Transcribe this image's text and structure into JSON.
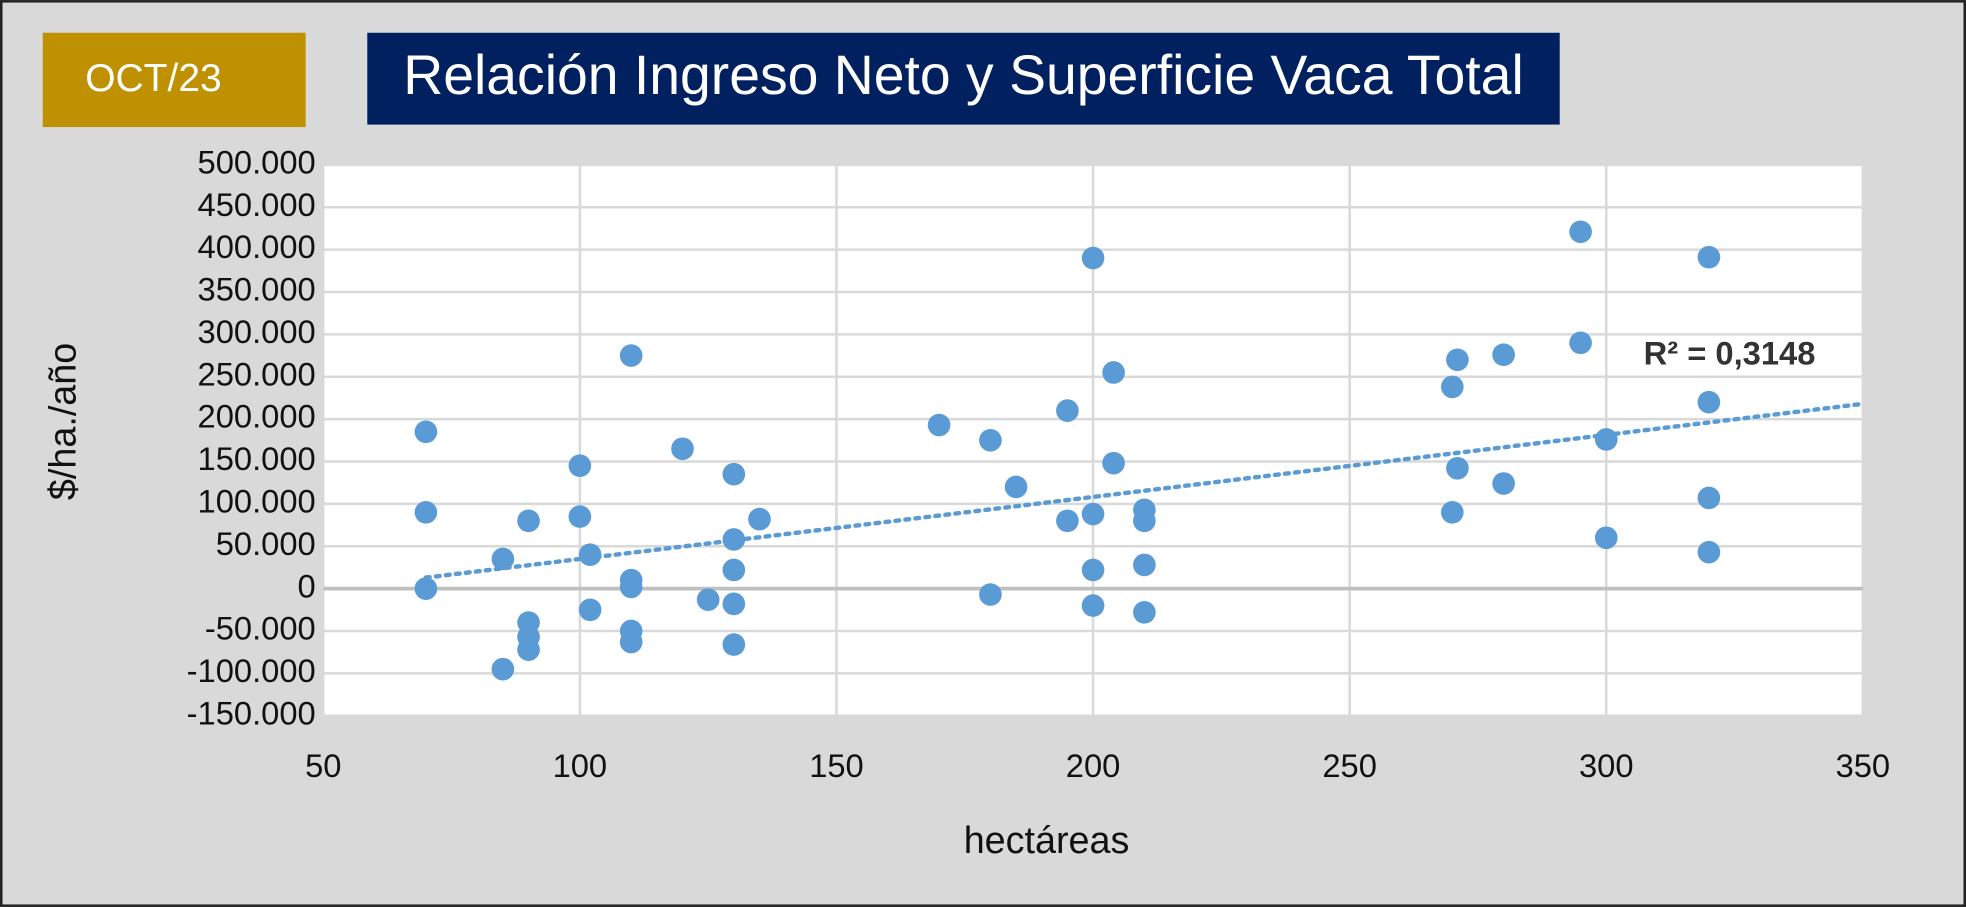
{
  "badge": "OCT/23",
  "chart_data": {
    "type": "scatter",
    "title": "Relación Ingreso Neto y Superficie Vaca Total",
    "x_label": "hectáreas",
    "y_label": "$/ha./año",
    "annotation": "R² = 0,3148",
    "xlim": [
      50,
      350
    ],
    "xticks": [
      50,
      100,
      150,
      200,
      250,
      300,
      350
    ],
    "ylim": [
      -150000,
      500000
    ],
    "yticks": [
      {
        "value": 500000,
        "label": "500.000"
      },
      {
        "value": 450000,
        "label": "450.000"
      },
      {
        "value": 400000,
        "label": "400.000"
      },
      {
        "value": 350000,
        "label": "350.000"
      },
      {
        "value": 300000,
        "label": "300.000"
      },
      {
        "value": 250000,
        "label": "250.000"
      },
      {
        "value": 200000,
        "label": "200.000"
      },
      {
        "value": 150000,
        "label": "150.000"
      },
      {
        "value": 100000,
        "label": "100.000"
      },
      {
        "value": 50000,
        "label": "50.000"
      },
      0,
      {
        "value": -50000,
        "label": "-50.000"
      },
      {
        "value": -100000,
        "label": "-100.000"
      },
      {
        "value": -150000,
        "label": "-150.000"
      }
    ],
    "grid": true,
    "color": "#5b9bd5",
    "x": [
      70,
      70,
      70,
      85,
      85,
      90,
      90,
      90,
      90,
      100,
      100,
      102,
      102,
      110,
      110,
      110,
      110,
      110,
      120,
      125,
      130,
      130,
      130,
      130,
      130,
      135,
      170,
      180,
      180,
      185,
      195,
      195,
      200,
      200,
      200,
      200,
      204,
      204,
      210,
      210,
      210,
      210,
      270,
      270,
      271,
      271,
      280,
      280,
      295,
      295,
      300,
      300,
      320,
      320,
      320,
      320
    ],
    "values": [
      185000,
      90000,
      0,
      35000,
      -95000,
      80000,
      -40000,
      -57000,
      -72000,
      145000,
      85000,
      40000,
      -25000,
      275000,
      10000,
      2000,
      -50000,
      -63000,
      165000,
      -13000,
      135000,
      58000,
      22000,
      -18000,
      -66000,
      82000,
      193000,
      175000,
      -7000,
      120000,
      210000,
      80000,
      390000,
      88000,
      22000,
      -20000,
      255000,
      148000,
      93000,
      80000,
      28000,
      -28000,
      90000,
      238000,
      270000,
      142000,
      276000,
      124000,
      421000,
      290000,
      176000,
      60000,
      391000,
      220000,
      107000,
      43000
    ],
    "trendline": {
      "x": [
        70,
        350
      ],
      "values": [
        13000,
        218000
      ]
    }
  }
}
